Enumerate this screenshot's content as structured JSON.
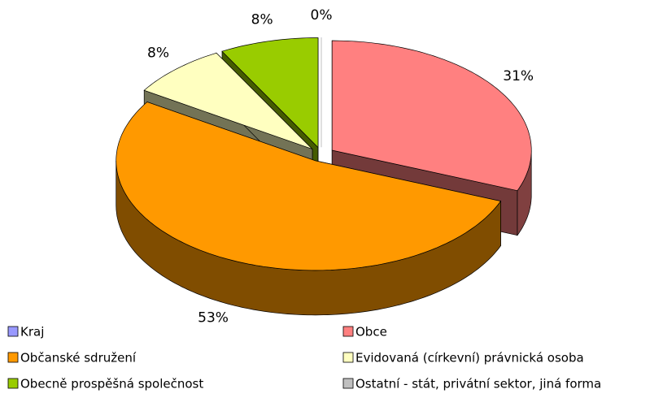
{
  "chart_data": {
    "type": "pie3d",
    "categories": [
      "Kraj",
      "Obce",
      "Občanské sdružení",
      "Evidovaná (církevní) právnická osoba",
      "Obecně prospěšná společnost",
      "Ostatní - stát, privátní sektor, jiná forma"
    ],
    "values": [
      0,
      31,
      53,
      8,
      8,
      0
    ],
    "value_labels": [
      "0%",
      "31%",
      "53%",
      "8%",
      "8%",
      null
    ],
    "colors": [
      "#9999ff",
      "#ff8080",
      "#ff9900",
      "#ffffc0",
      "#99cc00",
      "#c0c0c0"
    ],
    "legend": "bottom"
  }
}
